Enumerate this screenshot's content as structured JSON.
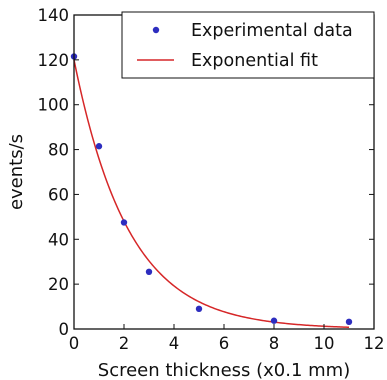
{
  "chart_data": {
    "type": "scatter",
    "xlabel": "Screen thickness (x0.1 mm)",
    "ylabel": "events/s",
    "xlim": [
      0,
      12
    ],
    "ylim": [
      0,
      140
    ],
    "x_ticks": [
      0,
      2,
      4,
      6,
      8,
      10,
      12
    ],
    "y_ticks": [
      0,
      20,
      40,
      60,
      80,
      100,
      120,
      140
    ],
    "grid": false,
    "legend_position": "top-right",
    "series": [
      {
        "name": "Experimental data",
        "kind": "markers",
        "color": "#2d2dbf",
        "x": [
          0,
          1,
          2,
          3,
          5,
          8,
          11
        ],
        "y": [
          121.5,
          81.5,
          47.5,
          25.5,
          9,
          3.7,
          3.2
        ]
      },
      {
        "name": "Exponential fit",
        "kind": "line",
        "color": "#d62728",
        "model": "y = 120 * exp(-0.458 * x)",
        "x": [
          0,
          1,
          2,
          3,
          4,
          5,
          6,
          7,
          8,
          9,
          10,
          11
        ],
        "y": [
          120,
          76,
          48,
          30.4,
          19.2,
          12.2,
          7.7,
          4.9,
          3.1,
          2.0,
          1.2,
          0.8
        ]
      }
    ]
  }
}
